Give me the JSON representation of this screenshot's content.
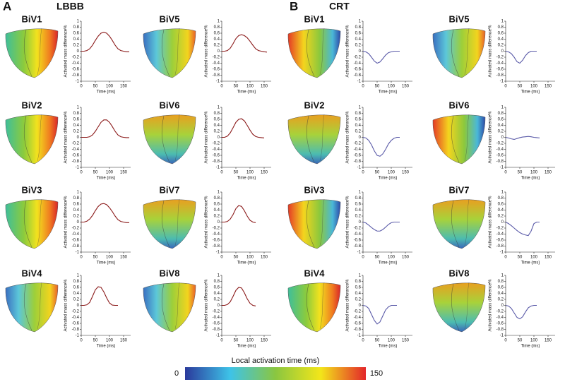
{
  "panels": [
    {
      "letter": "A",
      "title": "LBBB"
    },
    {
      "letter": "B",
      "title": "CRT"
    }
  ],
  "colorbar": {
    "title": "Local activation time (ms)",
    "min": 0,
    "max": 150
  },
  "chart_data": [
    {
      "type": "line",
      "title": "BiV1",
      "xlabel": "Time (ms)",
      "ylabel": "Activated mass difference%",
      "x": [
        0,
        10,
        20,
        30,
        40,
        50,
        60,
        70,
        80,
        90,
        100,
        110,
        120,
        130,
        140,
        150,
        160,
        170
      ],
      "series": [
        {
          "color": "#8b1a1a",
          "values": [
            0,
            0,
            0.02,
            0.08,
            0.2,
            0.36,
            0.5,
            0.6,
            0.63,
            0.6,
            0.5,
            0.36,
            0.2,
            0.08,
            0.02,
            0,
            -0.02,
            -0.02
          ]
        }
      ],
      "xlim": [
        0,
        175
      ],
      "ylim": [
        -1,
        1
      ],
      "xticks": [
        0,
        50,
        100,
        150
      ],
      "yticks": [
        -1,
        -0.8,
        -0.6,
        -0.4,
        -0.2,
        0,
        0.2,
        0.4,
        0.6,
        0.8,
        1
      ]
    },
    {
      "type": "line",
      "title": "BiV2",
      "xlabel": "Time (ms)",
      "ylabel": "Activated mass difference%",
      "x": [
        0,
        10,
        20,
        30,
        40,
        50,
        60,
        70,
        80,
        90,
        100,
        110,
        120,
        130,
        140,
        150,
        160,
        170
      ],
      "series": [
        {
          "color": "#8b1a1a",
          "values": [
            0,
            0,
            0,
            0.02,
            0.08,
            0.2,
            0.35,
            0.5,
            0.58,
            0.58,
            0.5,
            0.36,
            0.2,
            0.08,
            0.02,
            0,
            -0.01,
            -0.01
          ]
        }
      ],
      "xlim": [
        0,
        175
      ],
      "ylim": [
        -1,
        1
      ],
      "xticks": [
        0,
        50,
        100,
        150
      ],
      "yticks": [
        -1,
        -0.8,
        -0.6,
        -0.4,
        -0.2,
        0,
        0.2,
        0.4,
        0.6,
        0.8,
        1
      ]
    },
    {
      "type": "line",
      "title": "BiV3",
      "xlabel": "Time (ms)",
      "ylabel": "Activated mass difference%",
      "x": [
        0,
        10,
        20,
        30,
        40,
        50,
        60,
        70,
        80,
        90,
        100,
        110,
        120,
        130,
        140,
        150,
        160,
        170
      ],
      "series": [
        {
          "color": "#8b1a1a",
          "values": [
            0,
            0,
            0.03,
            0.1,
            0.22,
            0.38,
            0.52,
            0.6,
            0.62,
            0.58,
            0.48,
            0.35,
            0.2,
            0.08,
            0.02,
            0,
            -0.02,
            -0.02
          ]
        }
      ],
      "xlim": [
        0,
        175
      ],
      "ylim": [
        -1,
        1
      ],
      "xticks": [
        0,
        50,
        100,
        150
      ],
      "yticks": [
        -1,
        -0.8,
        -0.6,
        -0.4,
        -0.2,
        0,
        0.2,
        0.4,
        0.6,
        0.8,
        1
      ]
    },
    {
      "type": "line",
      "title": "BiV4",
      "xlabel": "Time (ms)",
      "ylabel": "Activated mass difference%",
      "x": [
        0,
        10,
        20,
        30,
        40,
        50,
        60,
        70,
        80,
        90,
        100,
        110,
        120,
        130
      ],
      "series": [
        {
          "color": "#8b1a1a",
          "values": [
            0,
            0,
            0.02,
            0.1,
            0.3,
            0.52,
            0.62,
            0.6,
            0.45,
            0.25,
            0.08,
            0.01,
            0,
            0
          ]
        }
      ],
      "xlim": [
        0,
        175
      ],
      "ylim": [
        -1,
        1
      ],
      "xticks": [
        0,
        50,
        100,
        150
      ],
      "yticks": [
        -1,
        -0.8,
        -0.6,
        -0.4,
        -0.2,
        0,
        0.2,
        0.4,
        0.6,
        0.8,
        1
      ]
    },
    {
      "type": "line",
      "title": "BiV5",
      "xlabel": "Time (ms)",
      "ylabel": "Activated mass difference%",
      "x": [
        0,
        10,
        20,
        30,
        40,
        50,
        60,
        70,
        80,
        90,
        100,
        110,
        120,
        130,
        140,
        150,
        160
      ],
      "series": [
        {
          "color": "#8b1a1a",
          "values": [
            0,
            0,
            0.02,
            0.1,
            0.25,
            0.42,
            0.52,
            0.55,
            0.52,
            0.45,
            0.33,
            0.2,
            0.08,
            0.02,
            0,
            -0.02,
            -0.03
          ]
        }
      ],
      "xlim": [
        0,
        175
      ],
      "ylim": [
        -1,
        1
      ],
      "xticks": [
        0,
        50,
        100,
        150
      ],
      "yticks": [
        -1,
        -0.8,
        -0.6,
        -0.4,
        -0.2,
        0,
        0.2,
        0.4,
        0.6,
        0.8,
        1
      ]
    },
    {
      "type": "line",
      "title": "BiV6",
      "xlabel": "Time (ms)",
      "ylabel": "Activated mass difference%",
      "x": [
        0,
        10,
        20,
        30,
        40,
        50,
        60,
        70,
        80,
        90,
        100,
        110,
        120,
        130,
        140,
        150
      ],
      "series": [
        {
          "color": "#8b1a1a",
          "values": [
            0,
            0,
            0.04,
            0.15,
            0.32,
            0.5,
            0.6,
            0.62,
            0.55,
            0.4,
            0.24,
            0.1,
            0.03,
            0,
            -0.01,
            -0.02
          ]
        }
      ],
      "xlim": [
        0,
        175
      ],
      "ylim": [
        -1,
        1
      ],
      "xticks": [
        0,
        50,
        100,
        150
      ],
      "yticks": [
        -1,
        -0.8,
        -0.6,
        -0.4,
        -0.2,
        0,
        0.2,
        0.4,
        0.6,
        0.8,
        1
      ]
    },
    {
      "type": "line",
      "title": "BiV7",
      "xlabel": "Time (ms)",
      "ylabel": "Activated mass difference%",
      "x": [
        0,
        10,
        20,
        30,
        40,
        50,
        60,
        70,
        80,
        90,
        100,
        110,
        120
      ],
      "series": [
        {
          "color": "#8b1a1a",
          "values": [
            0,
            0,
            0.02,
            0.1,
            0.25,
            0.45,
            0.55,
            0.52,
            0.38,
            0.2,
            0.06,
            0,
            -0.02
          ]
        }
      ],
      "xlim": [
        0,
        175
      ],
      "ylim": [
        -1,
        1
      ],
      "xticks": [
        0,
        50,
        100,
        150
      ],
      "yticks": [
        -1,
        -0.8,
        -0.6,
        -0.4,
        -0.2,
        0,
        0.2,
        0.4,
        0.6,
        0.8,
        1
      ]
    },
    {
      "type": "line",
      "title": "BiV8",
      "xlabel": "Time (ms)",
      "ylabel": "Activated mass difference%",
      "x": [
        0,
        10,
        20,
        30,
        40,
        50,
        60,
        70,
        80,
        90,
        100,
        110,
        120
      ],
      "series": [
        {
          "color": "#8b1a1a",
          "values": [
            0,
            0,
            0.03,
            0.12,
            0.3,
            0.5,
            0.6,
            0.58,
            0.42,
            0.22,
            0.07,
            0,
            -0.02
          ]
        }
      ],
      "xlim": [
        0,
        175
      ],
      "ylim": [
        -1,
        1
      ],
      "xticks": [
        0,
        50,
        100,
        150
      ],
      "yticks": [
        -1,
        -0.8,
        -0.6,
        -0.4,
        -0.2,
        0,
        0.2,
        0.4,
        0.6,
        0.8,
        1
      ]
    },
    {
      "type": "line",
      "title": "BiV1",
      "xlabel": "Time (ms)",
      "ylabel": "Activated mass difference%",
      "x": [
        0,
        10,
        20,
        30,
        40,
        50,
        60,
        70,
        80,
        90,
        100,
        110,
        120,
        130
      ],
      "series": [
        {
          "color": "#5a5aa8",
          "values": [
            0,
            -0.02,
            -0.08,
            -0.2,
            -0.33,
            -0.4,
            -0.36,
            -0.25,
            -0.13,
            -0.05,
            -0.02,
            0,
            0,
            0
          ]
        }
      ],
      "xlim": [
        0,
        175
      ],
      "ylim": [
        -1,
        1
      ],
      "xticks": [
        0,
        50,
        100,
        150
      ],
      "yticks": [
        -1,
        -0.8,
        -0.6,
        -0.4,
        -0.2,
        0,
        0.2,
        0.4,
        0.6,
        0.8,
        1
      ]
    },
    {
      "type": "line",
      "title": "BiV2",
      "xlabel": "Time (ms)",
      "ylabel": "Activated mass difference%",
      "x": [
        0,
        10,
        20,
        30,
        40,
        50,
        60,
        70,
        80,
        90,
        100,
        110,
        120,
        130
      ],
      "series": [
        {
          "color": "#5a5aa8",
          "values": [
            0,
            -0.02,
            -0.1,
            -0.25,
            -0.45,
            -0.6,
            -0.63,
            -0.55,
            -0.4,
            -0.22,
            -0.1,
            -0.03,
            0,
            0
          ]
        }
      ],
      "xlim": [
        0,
        175
      ],
      "ylim": [
        -1,
        1
      ],
      "xticks": [
        0,
        50,
        100,
        150
      ],
      "yticks": [
        -1,
        -0.8,
        -0.6,
        -0.4,
        -0.2,
        0,
        0.2,
        0.4,
        0.6,
        0.8,
        1
      ]
    },
    {
      "type": "line",
      "title": "BiV3",
      "xlabel": "Time (ms)",
      "ylabel": "Activated mass difference%",
      "x": [
        0,
        10,
        20,
        30,
        40,
        50,
        60,
        70,
        80,
        90,
        100,
        110,
        120,
        130
      ],
      "series": [
        {
          "color": "#5a5aa8",
          "values": [
            0,
            -0.03,
            -0.1,
            -0.18,
            -0.25,
            -0.3,
            -0.3,
            -0.25,
            -0.17,
            -0.08,
            -0.02,
            0,
            0,
            0
          ]
        }
      ],
      "xlim": [
        0,
        175
      ],
      "ylim": [
        -1,
        1
      ],
      "xticks": [
        0,
        50,
        100,
        150
      ],
      "yticks": [
        -1,
        -0.8,
        -0.6,
        -0.4,
        -0.2,
        0,
        0.2,
        0.4,
        0.6,
        0.8,
        1
      ]
    },
    {
      "type": "line",
      "title": "BiV4",
      "xlabel": "Time (ms)",
      "ylabel": "Activated mass difference%",
      "x": [
        0,
        10,
        20,
        30,
        40,
        50,
        60,
        70,
        80,
        90,
        100,
        110,
        120
      ],
      "series": [
        {
          "color": "#5a5aa8",
          "values": [
            0,
            -0.02,
            -0.1,
            -0.3,
            -0.5,
            -0.62,
            -0.55,
            -0.35,
            -0.15,
            -0.05,
            0,
            0,
            0
          ]
        }
      ],
      "xlim": [
        0,
        175
      ],
      "ylim": [
        -1,
        1
      ],
      "xticks": [
        0,
        50,
        100,
        150
      ],
      "yticks": [
        -1,
        -0.8,
        -0.6,
        -0.4,
        -0.2,
        0,
        0.2,
        0.4,
        0.6,
        0.8,
        1
      ]
    },
    {
      "type": "line",
      "title": "BiV5",
      "xlabel": "Time (ms)",
      "ylabel": "Activated mass difference%",
      "x": [
        0,
        10,
        20,
        30,
        40,
        50,
        60,
        70,
        80,
        90,
        100,
        110
      ],
      "series": [
        {
          "color": "#5a5aa8",
          "values": [
            0,
            -0.02,
            -0.08,
            -0.2,
            -0.35,
            -0.4,
            -0.3,
            -0.15,
            -0.05,
            0,
            0,
            0
          ]
        }
      ],
      "xlim": [
        0,
        175
      ],
      "ylim": [
        -1,
        1
      ],
      "xticks": [
        0,
        50,
        100,
        150
      ],
      "yticks": [
        -1,
        -0.8,
        -0.6,
        -0.4,
        -0.2,
        0,
        0.2,
        0.4,
        0.6,
        0.8,
        1
      ]
    },
    {
      "type": "line",
      "title": "BiV6",
      "xlabel": "Time (ms)",
      "ylabel": "Activated mass difference%",
      "x": [
        0,
        10,
        20,
        30,
        40,
        50,
        60,
        70,
        80,
        90,
        100,
        110,
        120
      ],
      "series": [
        {
          "color": "#5a5aa8",
          "values": [
            0,
            -0.02,
            -0.05,
            -0.07,
            -0.04,
            -0.01,
            0.01,
            0.02,
            0.03,
            0.02,
            0,
            -0.01,
            -0.02
          ]
        }
      ],
      "xlim": [
        0,
        175
      ],
      "ylim": [
        -1,
        1
      ],
      "xticks": [
        0,
        50,
        100,
        150
      ],
      "yticks": [
        -1,
        -0.8,
        -0.6,
        -0.4,
        -0.2,
        0,
        0.2,
        0.4,
        0.6,
        0.8,
        1
      ]
    },
    {
      "type": "line",
      "title": "BiV7",
      "xlabel": "Time (ms)",
      "ylabel": "Activated mass difference%",
      "x": [
        0,
        10,
        20,
        30,
        40,
        50,
        60,
        70,
        80,
        90,
        100,
        110,
        120
      ],
      "series": [
        {
          "color": "#5a5aa8",
          "values": [
            0,
            -0.05,
            -0.12,
            -0.2,
            -0.28,
            -0.35,
            -0.4,
            -0.43,
            -0.45,
            -0.3,
            -0.05,
            0,
            0
          ]
        }
      ],
      "xlim": [
        0,
        175
      ],
      "ylim": [
        -1,
        1
      ],
      "xticks": [
        0,
        50,
        100,
        150
      ],
      "yticks": [
        -1,
        -0.8,
        -0.6,
        -0.4,
        -0.2,
        0,
        0.2,
        0.4,
        0.6,
        0.8,
        1
      ]
    },
    {
      "type": "line",
      "title": "BiV8",
      "xlabel": "Time (ms)",
      "ylabel": "Activated mass difference%",
      "x": [
        0,
        10,
        20,
        30,
        40,
        50,
        60,
        70,
        80,
        90,
        100,
        110
      ],
      "series": [
        {
          "color": "#5a5aa8",
          "values": [
            0,
            -0.02,
            -0.1,
            -0.25,
            -0.4,
            -0.45,
            -0.38,
            -0.22,
            -0.08,
            -0.02,
            0,
            0
          ]
        }
      ],
      "xlim": [
        0,
        175
      ],
      "ylim": [
        -1,
        1
      ],
      "xticks": [
        0,
        50,
        100,
        150
      ],
      "yticks": [
        -1,
        -0.8,
        -0.6,
        -0.4,
        -0.2,
        0,
        0.2,
        0.4,
        0.6,
        0.8,
        1
      ]
    }
  ]
}
